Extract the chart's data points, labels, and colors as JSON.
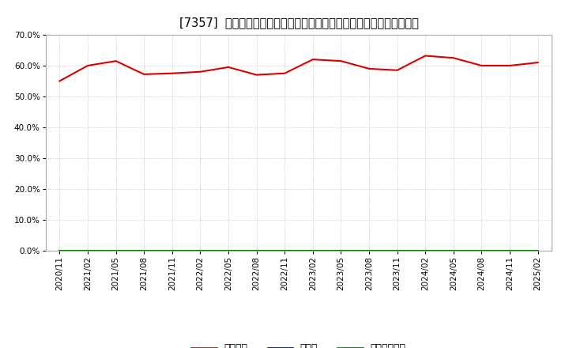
{
  "title": "[7357]  自己資本、のれん、繰延税金資産の総資産に対する比率の推移",
  "x_labels": [
    "2020/11",
    "2021/02",
    "2021/05",
    "2021/08",
    "2021/11",
    "2022/02",
    "2022/05",
    "2022/08",
    "2022/11",
    "2023/02",
    "2023/05",
    "2023/08",
    "2023/11",
    "2024/02",
    "2024/05",
    "2024/08",
    "2024/11",
    "2025/02"
  ],
  "equity_ratio": [
    55.0,
    60.0,
    61.5,
    57.2,
    57.5,
    58.0,
    59.5,
    57.0,
    57.5,
    62.0,
    61.5,
    59.0,
    58.5,
    63.2,
    62.5,
    60.0,
    60.0,
    61.0
  ],
  "goodwill_ratio": [
    0.0,
    0.0,
    0.0,
    0.0,
    0.0,
    0.0,
    0.0,
    0.0,
    0.0,
    0.0,
    0.0,
    0.0,
    0.0,
    0.0,
    0.0,
    0.0,
    0.0,
    0.0
  ],
  "deferred_tax_ratio": [
    0.0,
    0.0,
    0.0,
    0.0,
    0.0,
    0.0,
    0.0,
    0.0,
    0.0,
    0.0,
    0.0,
    0.0,
    0.0,
    0.0,
    0.0,
    0.0,
    0.0,
    0.0
  ],
  "line_colors": [
    "#dd0000",
    "#0000cc",
    "#007700"
  ],
  "legend_labels": [
    "自己資本",
    "のれん",
    "繰延税金資産"
  ],
  "ylim": [
    0,
    70
  ],
  "yticks": [
    0,
    10,
    20,
    30,
    40,
    50,
    60,
    70
  ],
  "background_color": "#ffffff",
  "plot_bg_color": "#ffffff",
  "grid_color": "#aaaaaa",
  "title_fontsize": 10.5,
  "tick_fontsize": 7.5
}
